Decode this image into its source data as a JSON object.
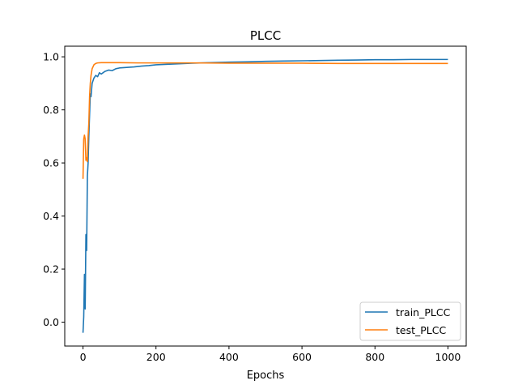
{
  "chart_data": {
    "type": "line",
    "title": "PLCC",
    "xlabel": "Epochs",
    "ylabel": "",
    "xlim": [
      -50,
      1050
    ],
    "ylim": [
      -0.09,
      1.04
    ],
    "xticks": [
      0,
      200,
      400,
      600,
      800,
      1000
    ],
    "yticks": [
      0.0,
      0.2,
      0.4,
      0.6,
      0.8,
      1.0
    ],
    "xtick_labels": [
      "0",
      "200",
      "400",
      "600",
      "800",
      "1000"
    ],
    "ytick_labels": [
      "0.0",
      "0.2",
      "0.4",
      "0.6",
      "0.8",
      "1.0"
    ],
    "grid": false,
    "legend_position": "lower-right",
    "series": [
      {
        "name": "train_PLCC",
        "color": "#1f77b4",
        "x": [
          0,
          2,
          4,
          6,
          8,
          10,
          12,
          14,
          16,
          18,
          20,
          22,
          25,
          30,
          35,
          40,
          45,
          50,
          60,
          70,
          80,
          90,
          100,
          120,
          140,
          160,
          180,
          200,
          250,
          300,
          350,
          400,
          450,
          500,
          550,
          600,
          650,
          700,
          750,
          800,
          850,
          900,
          950,
          1000
        ],
        "y": [
          -0.04,
          0.02,
          0.18,
          0.05,
          0.33,
          0.27,
          0.55,
          0.6,
          0.7,
          0.78,
          0.86,
          0.85,
          0.9,
          0.92,
          0.93,
          0.925,
          0.94,
          0.935,
          0.945,
          0.95,
          0.948,
          0.955,
          0.958,
          0.96,
          0.962,
          0.965,
          0.967,
          0.97,
          0.973,
          0.976,
          0.978,
          0.98,
          0.981,
          0.983,
          0.984,
          0.985,
          0.986,
          0.987,
          0.988,
          0.989,
          0.989,
          0.99,
          0.99,
          0.99
        ]
      },
      {
        "name": "test_PLCC",
        "color": "#ff7f0e",
        "x": [
          0,
          2,
          4,
          6,
          8,
          10,
          12,
          14,
          16,
          18,
          20,
          22,
          25,
          30,
          35,
          40,
          50,
          60,
          80,
          100,
          150,
          200,
          250,
          300,
          400,
          500,
          600,
          700,
          800,
          900,
          1000
        ],
        "y": [
          0.54,
          0.69,
          0.705,
          0.69,
          0.61,
          0.62,
          0.605,
          0.7,
          0.75,
          0.85,
          0.9,
          0.93,
          0.955,
          0.97,
          0.975,
          0.977,
          0.978,
          0.978,
          0.978,
          0.978,
          0.977,
          0.977,
          0.977,
          0.977,
          0.976,
          0.976,
          0.976,
          0.975,
          0.975,
          0.975,
          0.975
        ]
      }
    ]
  }
}
